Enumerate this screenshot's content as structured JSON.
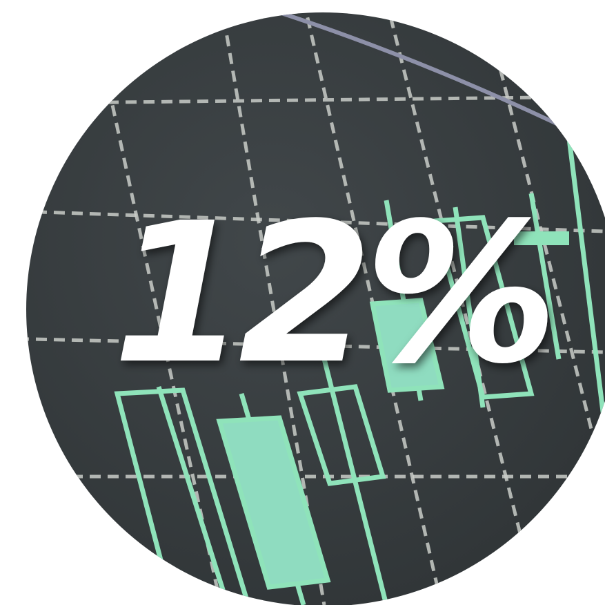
{
  "badge": {
    "text": "12%"
  }
}
